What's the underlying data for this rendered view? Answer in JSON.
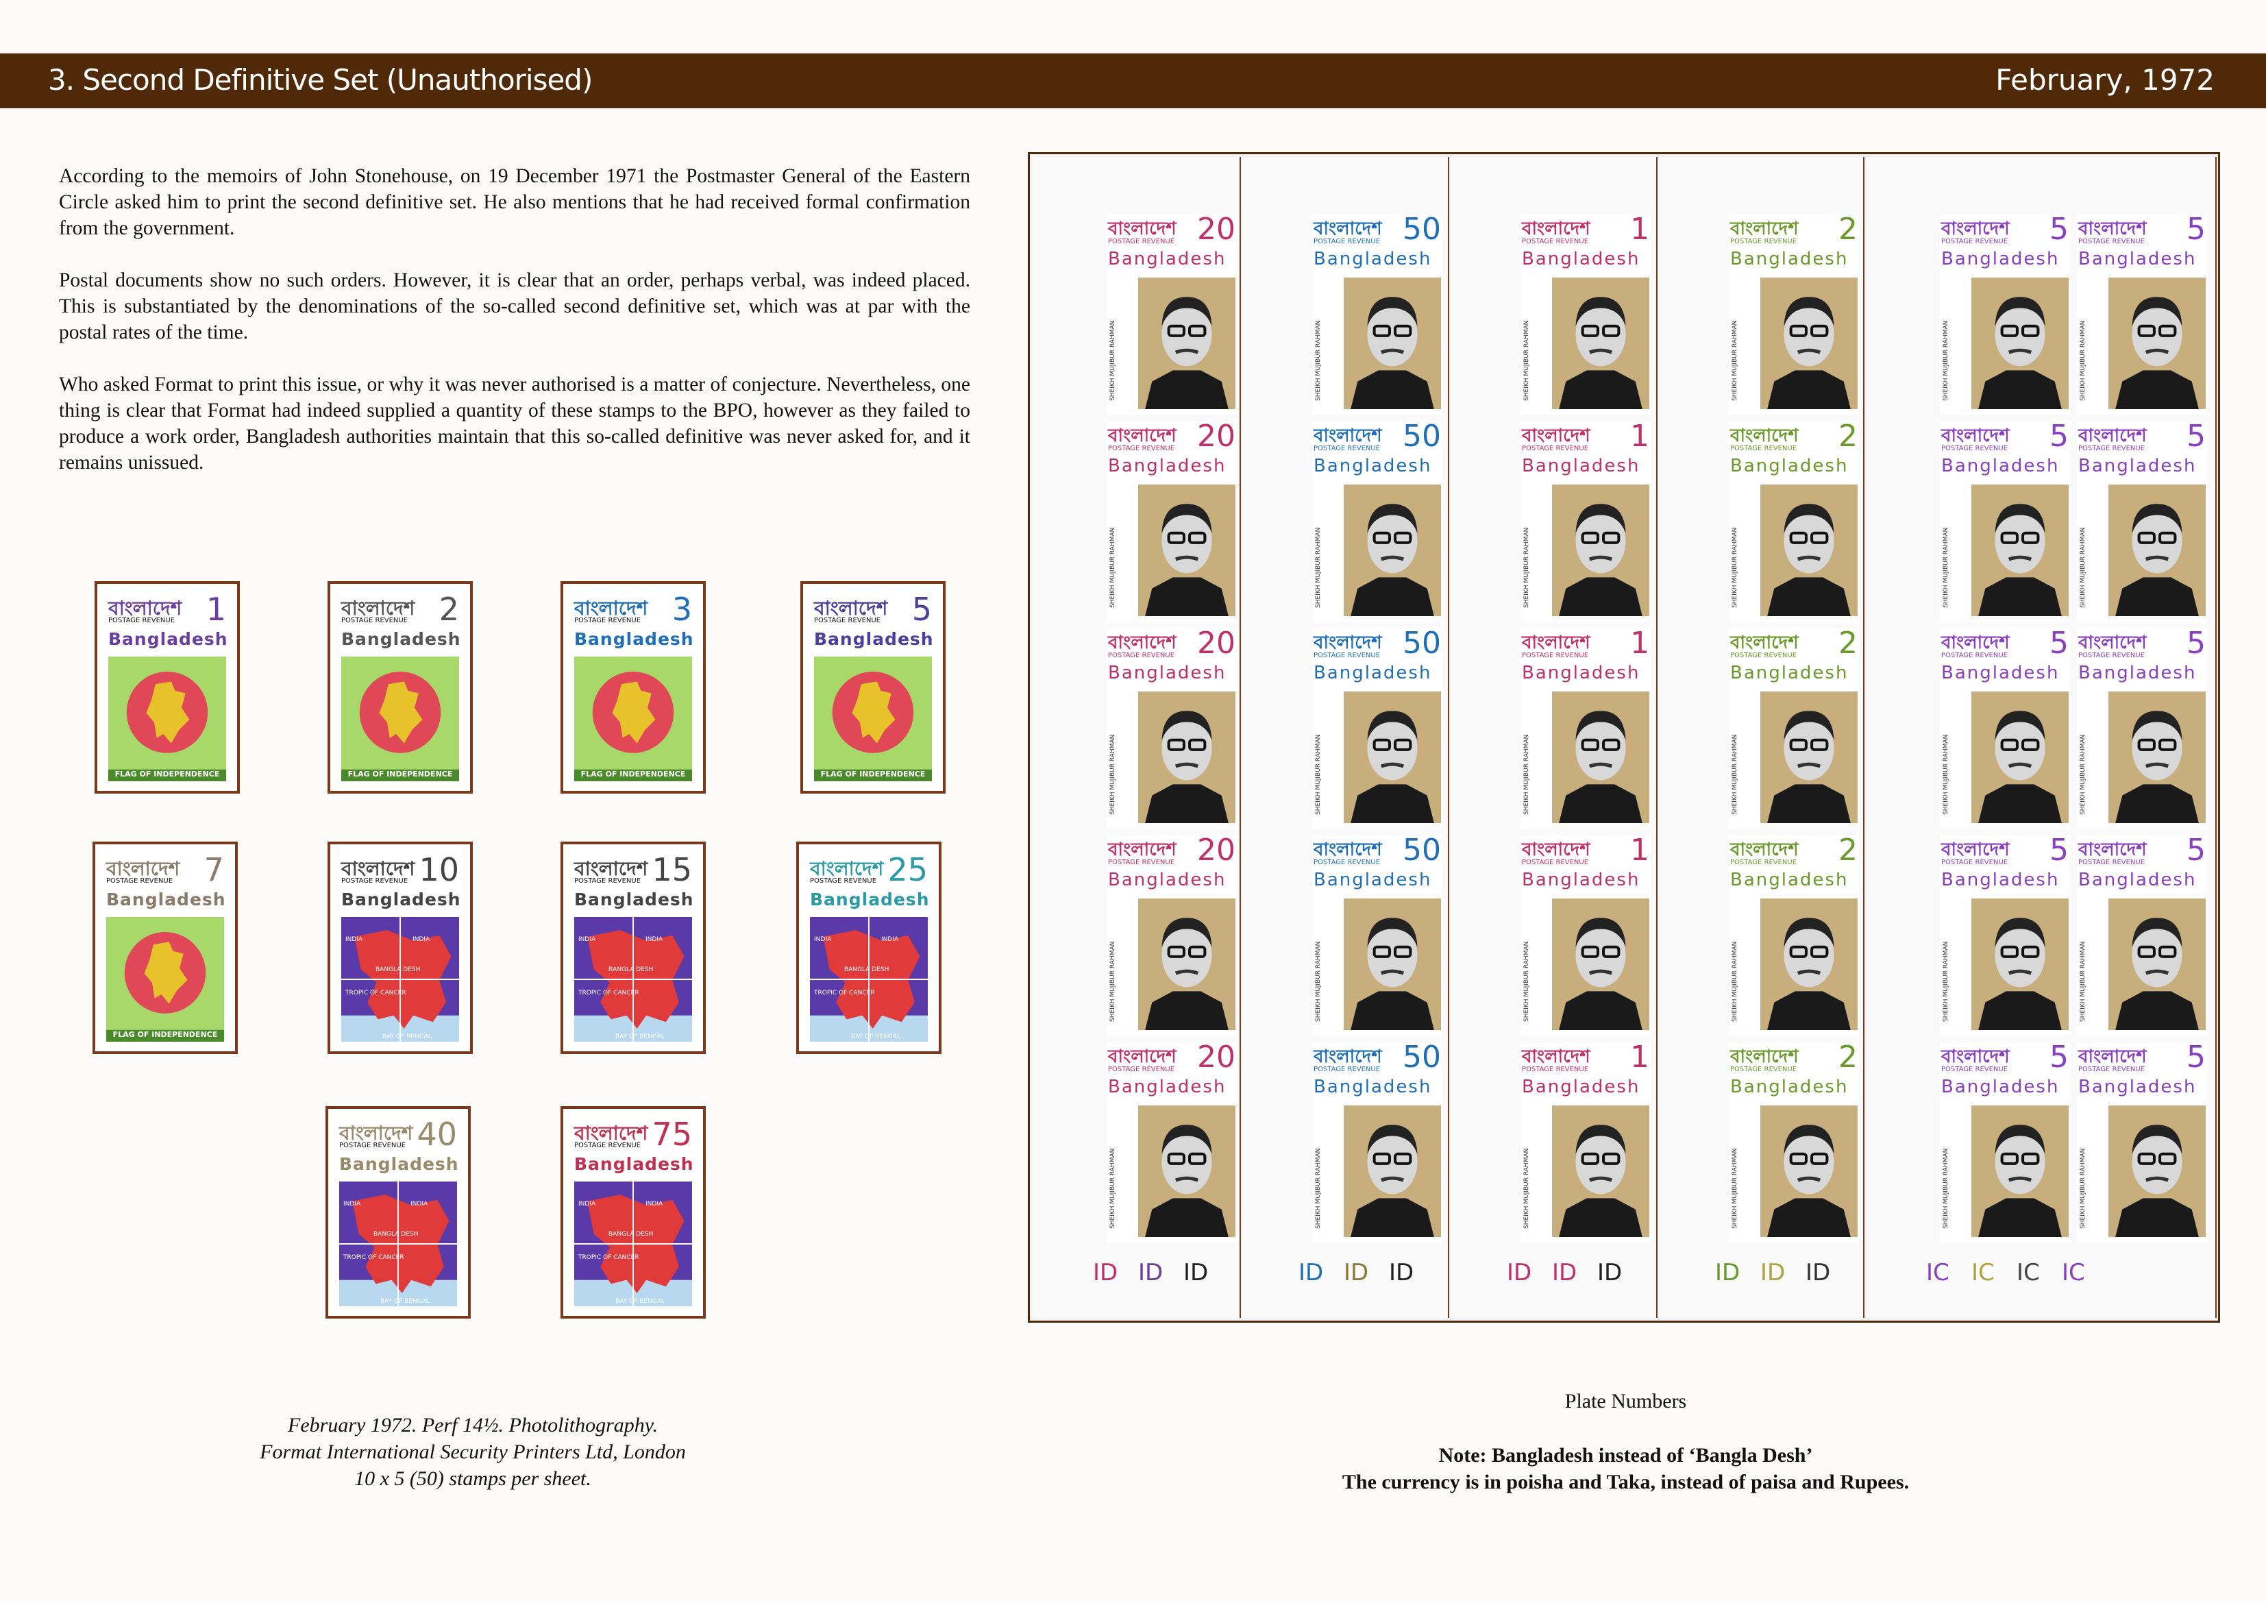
{
  "header": {
    "title": "3. Second Definitive Set (Unauthorised)",
    "date": "February, 1972"
  },
  "intro": {
    "p1": "According to the memoirs of John Stonehouse, on 19 December 1971 the Postmaster General of the Eastern Circle asked him to print the second definitive set. He also mentions that he had received formal confirmation from the government.",
    "p2": "Postal documents show no such orders. However, it is clear that an order, perhaps verbal, was indeed placed. This is substantiated by the denominations of the so-called second definitive set, which was at par with the postal rates of the time.",
    "p3": "Who asked Format to print this issue, or why it was never authorised is a matter of conjecture. Nevertheless, one thing is clear that Format had indeed supplied a quantity of these stamps to the BPO, however as they failed to produce a work order, Bangladesh authorities maintain that this so-called definitive was never asked for, and it remains unissued."
  },
  "stamp_common": {
    "bengali": "বাংলাদেশ",
    "postage": "POSTAGE REVENUE",
    "country": "Bangladesh",
    "flag_caption": "FLAG OF INDEPENDENCE"
  },
  "stamps": [
    {
      "value": "1",
      "design": "flag",
      "color": "#6a3fa0"
    },
    {
      "value": "2",
      "design": "flag",
      "color": "#555555"
    },
    {
      "value": "3",
      "design": "flag",
      "color": "#1f6fb8"
    },
    {
      "value": "5",
      "design": "flag",
      "color": "#4b3fa0"
    },
    {
      "value": "7",
      "design": "flag",
      "color": "#8a7a6a"
    },
    {
      "value": "10",
      "design": "map",
      "color": "#444444"
    },
    {
      "value": "15",
      "design": "map",
      "color": "#444444"
    },
    {
      "value": "25",
      "design": "map",
      "color": "#2a9aa8"
    },
    {
      "value": "40",
      "design": "map",
      "color": "#9a8a6a"
    },
    {
      "value": "75",
      "design": "map",
      "color": "#c03050"
    }
  ],
  "map_labels": {
    "india": "INDIA",
    "country": "BANGLA DESH",
    "tropic": "TROPIC OF CANCER",
    "bay": "BAY OF BENGAL"
  },
  "caption_left": {
    "l1": "February 1972. Perf 14½. Photolithography.",
    "l2": "Format International Security Printers Ltd, London",
    "l3": "10 x 5 (50) stamps per sheet."
  },
  "sheets": [
    {
      "value": "20",
      "color": "#c0306a",
      "plate": [
        "ID",
        "ID",
        "ID"
      ],
      "plate_colors": [
        "#c0306a",
        "#6a3fa0",
        "#222222"
      ]
    },
    {
      "value": "50",
      "color": "#1f6fb8",
      "plate": [
        "ID",
        "ID",
        "ID"
      ],
      "plate_colors": [
        "#1f6fb8",
        "#8a7a3a",
        "#222222"
      ]
    },
    {
      "value": "1",
      "color": "#c0306a",
      "plate": [
        "ID",
        "ID",
        "ID"
      ],
      "plate_colors": [
        "#c0306a",
        "#c0306a",
        "#222222"
      ]
    },
    {
      "value": "2",
      "color": "#6a9a2a",
      "plate": [
        "ID",
        "ID",
        "ID"
      ],
      "plate_colors": [
        "#6a9a2a",
        "#b0a040",
        "#333333"
      ]
    },
    {
      "value": "5",
      "color": "#8a3fc0",
      "plate": [
        "IC",
        "IC",
        "IC",
        "IC"
      ],
      "plate_colors": [
        "#8a3fc0",
        "#b0a040",
        "#444444",
        "#8a3fc0"
      ]
    }
  ],
  "sheet_side_text": "SHEIKH MUJIBUR RAHMAN",
  "caption_right": {
    "title": "Plate Numbers",
    "note1": "Note: Bangladesh instead of ‘Bangla Desh’",
    "note2": "The currency is in poisha and Taka, instead of paisa and Rupees."
  }
}
